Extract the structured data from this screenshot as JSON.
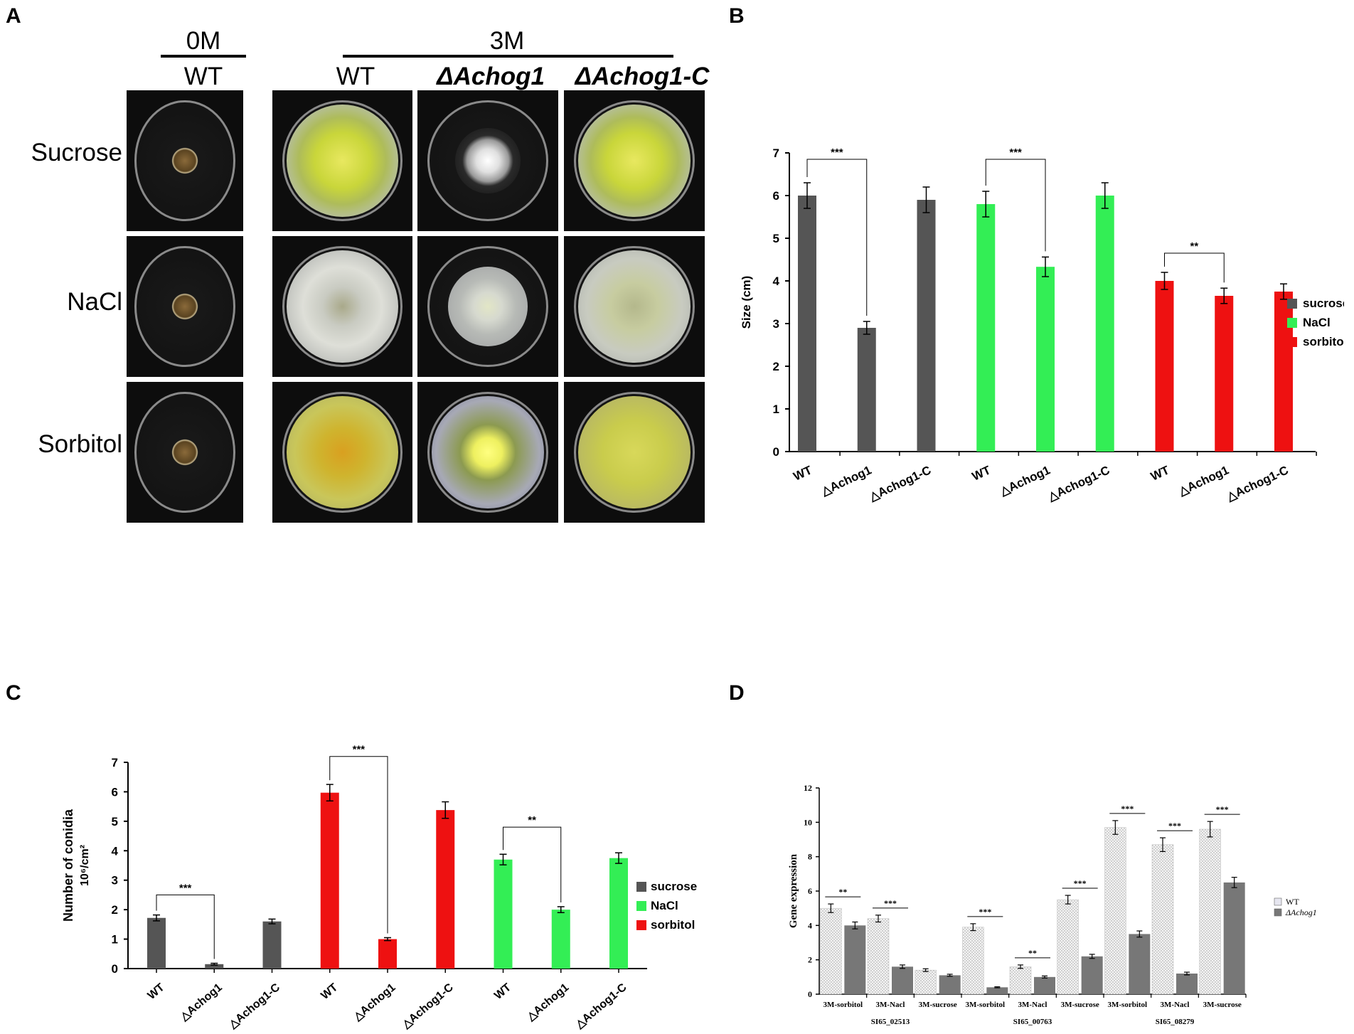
{
  "panel_labels": {
    "a": "A",
    "b": "B",
    "c": "C",
    "d": "D"
  },
  "panelA": {
    "group_0m": "0M",
    "group_3m": "3M",
    "columns": [
      "WT",
      "WT",
      "ΔAchog1",
      "ΔAchog1-C"
    ],
    "rows": [
      "Sucrose",
      "NaCl",
      "Sorbitol"
    ]
  },
  "chart_data": [
    {
      "panel": "B",
      "type": "bar",
      "ylabel": "Size (cm)",
      "ylim": [
        0,
        7
      ],
      "yticks": [
        0,
        1,
        2,
        3,
        4,
        5,
        6,
        7
      ],
      "categories": [
        "WT",
        "△Achog1",
        "△Achog1-C",
        "WT",
        "△Achog1",
        "△Achog1-C",
        "WT",
        "△Achog1",
        "△Achog1-C"
      ],
      "values": [
        6.0,
        2.9,
        5.9,
        5.8,
        4.33,
        6.0,
        4.0,
        3.65,
        3.75
      ],
      "errors": [
        0.3,
        0.15,
        0.3,
        0.3,
        0.23,
        0.3,
        0.2,
        0.18,
        0.18
      ],
      "series_index": [
        0,
        0,
        0,
        1,
        1,
        1,
        2,
        2,
        2
      ],
      "legend": [
        {
          "name": "sucrose",
          "color": "#555555"
        },
        {
          "name": "NaCl",
          "color": "#33ee55"
        },
        {
          "name": "sorbitol",
          "color": "#ee1111"
        }
      ],
      "significance": [
        {
          "from": 0,
          "to": 1,
          "label": "***",
          "y": 6.85
        },
        {
          "from": 3,
          "to": 4,
          "label": "***",
          "y": 6.85
        },
        {
          "from": 6,
          "to": 7,
          "label": "**",
          "y": 4.65
        }
      ],
      "legend_position": "right"
    },
    {
      "panel": "C",
      "type": "bar",
      "ylabel_line1": "Number of conidia",
      "ylabel_line2": "10⁶/cm²",
      "ylim": [
        0,
        7
      ],
      "yticks": [
        0,
        1,
        2,
        3,
        4,
        5,
        6,
        7
      ],
      "categories": [
        "WT",
        "△Achog1",
        "△Achog1-C",
        "WT",
        "△Achog1",
        "△Achog1-C",
        "WT",
        "△Achog1",
        "△Achog1-C"
      ],
      "values": [
        1.72,
        0.15,
        1.6,
        5.97,
        1.0,
        5.38,
        3.7,
        2.0,
        3.75
      ],
      "errors": [
        0.1,
        0.03,
        0.08,
        0.28,
        0.05,
        0.28,
        0.18,
        0.1,
        0.18
      ],
      "series_index": [
        0,
        0,
        0,
        2,
        2,
        2,
        1,
        1,
        1
      ],
      "legend": [
        {
          "name": "sucrose",
          "color": "#555555"
        },
        {
          "name": "NaCl",
          "color": "#33ee55"
        },
        {
          "name": "sorbitol",
          "color": "#ee1111"
        }
      ],
      "significance": [
        {
          "from": 0,
          "to": 1,
          "label": "***",
          "y": 2.5
        },
        {
          "from": 3,
          "to": 4,
          "label": "***",
          "y": 7.2
        },
        {
          "from": 6,
          "to": 7,
          "label": "**",
          "y": 4.8
        }
      ],
      "legend_position": "right"
    },
    {
      "panel": "D",
      "type": "bar",
      "ylabel": "Gene expression",
      "ylim": [
        0,
        12
      ],
      "yticks": [
        0,
        2,
        4,
        6,
        8,
        10,
        12
      ],
      "categories": [
        "3M-sorbitol",
        "3M-Nacl",
        "3M-sucrose",
        "3M-sorbitol",
        "3M-Nacl",
        "3M-sucrose",
        "3M-sorbitol",
        "3M-Nacl",
        "3M-sucrose"
      ],
      "gene_labels": [
        "SI65_02513",
        "SI65_00763",
        "SI65_08279"
      ],
      "series": [
        {
          "name": "WT",
          "values": [
            5.0,
            4.4,
            1.4,
            3.9,
            1.6,
            5.5,
            9.7,
            8.7,
            9.6
          ],
          "errors": [
            0.25,
            0.2,
            0.08,
            0.2,
            0.1,
            0.25,
            0.4,
            0.4,
            0.45
          ],
          "color": "#ececec"
        },
        {
          "name": "ΔAchog1",
          "values": [
            4.0,
            1.6,
            1.1,
            0.4,
            1.0,
            2.2,
            3.5,
            1.2,
            6.5
          ],
          "errors": [
            0.2,
            0.1,
            0.06,
            0.03,
            0.06,
            0.12,
            0.18,
            0.08,
            0.3
          ],
          "color": "#777777"
        }
      ],
      "significance": [
        "**",
        "***",
        "",
        "***",
        "**",
        "***",
        "***",
        "***",
        "***"
      ],
      "legend_position": "right"
    }
  ]
}
